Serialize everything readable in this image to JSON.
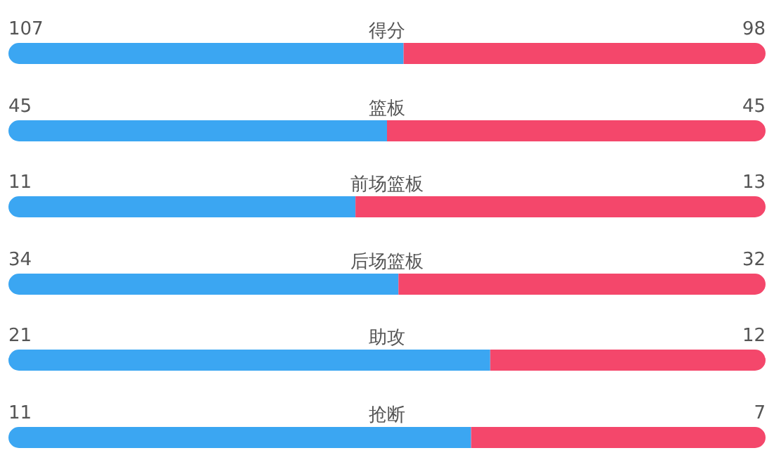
{
  "chart_data": [
    {
      "type": "bar",
      "orientation": "horizontal",
      "stacked": true,
      "categories": [
        "得分"
      ],
      "tick_labels": "y",
      "data_labels": true,
      "series": [
        {
          "color": "#3ba6f2",
          "values": [
            107
          ]
        },
        {
          "color": "#f4476b",
          "values": [
            98
          ]
        }
      ]
    },
    {
      "type": "bar",
      "orientation": "horizontal",
      "stacked": true,
      "categories": [
        "篮板"
      ],
      "tick_labels": "y",
      "data_labels": true,
      "series": [
        {
          "color": "#3ba6f2",
          "values": [
            45
          ]
        },
        {
          "color": "#f4476b",
          "values": [
            45
          ]
        }
      ]
    },
    {
      "type": "bar",
      "orientation": "horizontal",
      "stacked": true,
      "categories": [
        "前场篮板"
      ],
      "tick_labels": "y",
      "data_labels": true,
      "series": [
        {
          "color": "#3ba6f2",
          "values": [
            11
          ]
        },
        {
          "color": "#f4476b",
          "values": [
            13
          ]
        }
      ]
    },
    {
      "type": "bar",
      "orientation": "horizontal",
      "stacked": true,
      "categories": [
        "后场篮板"
      ],
      "tick_labels": "y",
      "data_labels": true,
      "series": [
        {
          "color": "#3ba6f2",
          "values": [
            34
          ]
        },
        {
          "color": "#f4476b",
          "values": [
            32
          ]
        }
      ]
    },
    {
      "type": "bar",
      "orientation": "horizontal",
      "stacked": true,
      "categories": [
        "助攻"
      ],
      "tick_labels": "y",
      "data_labels": true,
      "series": [
        {
          "color": "#3ba6f2",
          "values": [
            21
          ]
        },
        {
          "color": "#f4476b",
          "values": [
            12
          ]
        }
      ]
    },
    {
      "type": "bar",
      "orientation": "horizontal",
      "stacked": true,
      "categories": [
        "抢断"
      ],
      "tick_labels": "y",
      "data_labels": true,
      "series": [
        {
          "color": "#3ba6f2",
          "values": [
            11
          ]
        },
        {
          "color": "#f4476b",
          "values": [
            7
          ]
        }
      ]
    }
  ]
}
